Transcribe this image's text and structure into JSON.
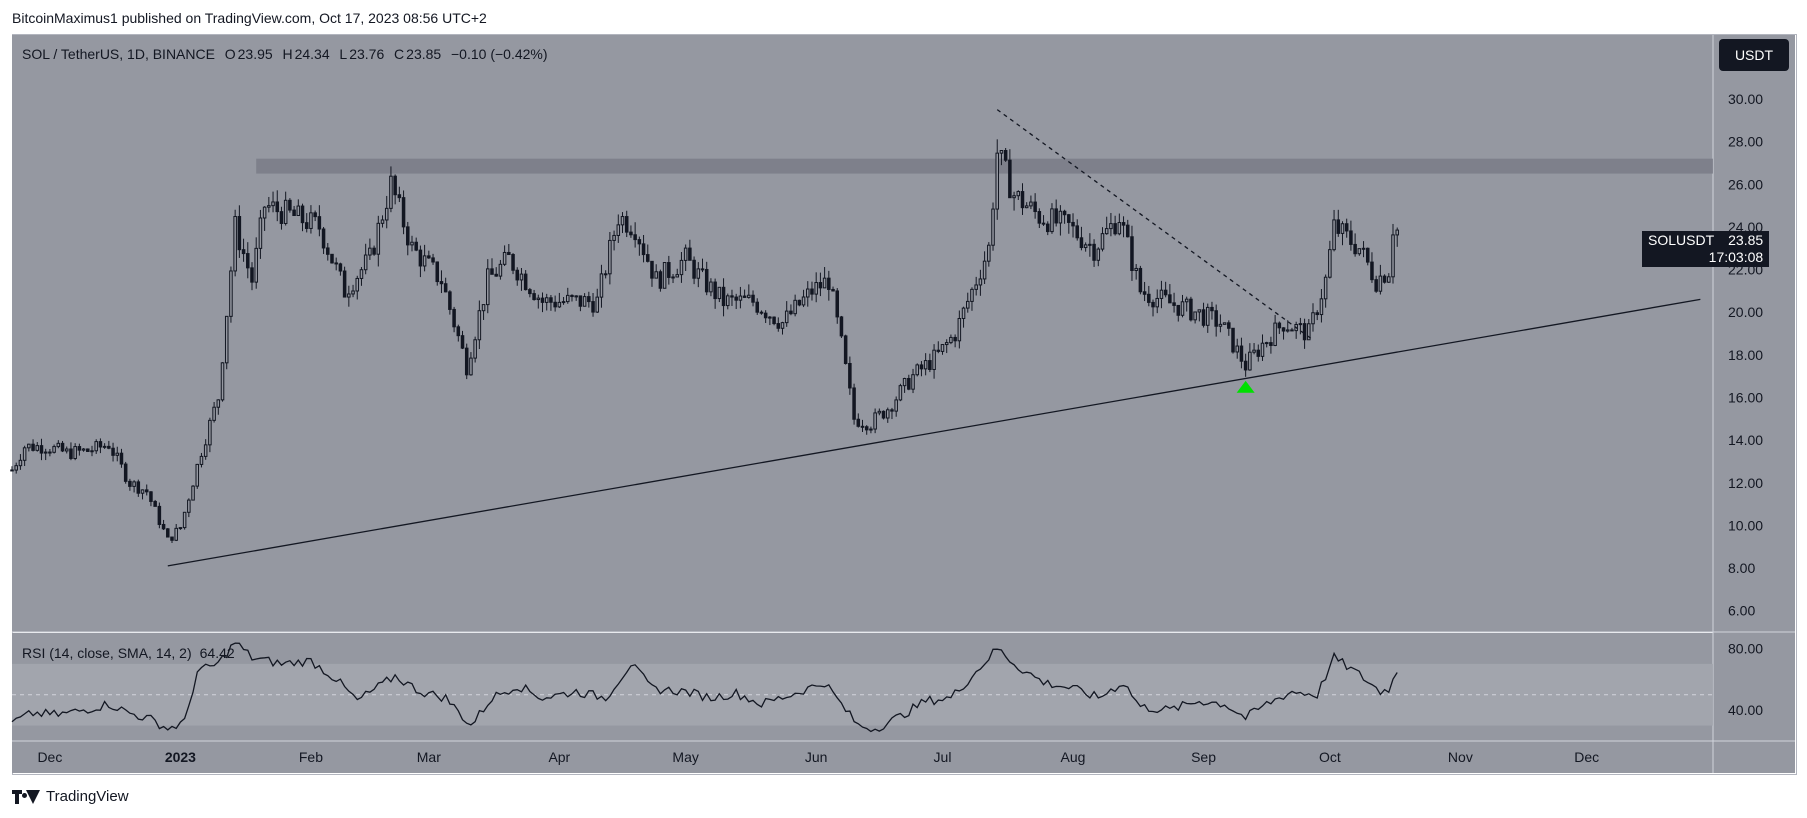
{
  "header": {
    "published": "BitcoinMaximus1 published on TradingView.com, Oct 17, 2023 08:56 UTC+2"
  },
  "symbol": {
    "title": "SOL / TetherUS, 1D, BINANCE",
    "o_label": "O",
    "o_value": "23.95",
    "h_label": "H",
    "h_value": "24.34",
    "l_label": "L",
    "l_value": "23.76",
    "c_label": "C",
    "c_value": "23.85",
    "change": "−0.10 (−0.42%)"
  },
  "rsi_legend": {
    "title": "RSI (14, close, SMA, 14, 2)",
    "value": "64.42"
  },
  "currency_button": "USDT",
  "price_tag": {
    "pair": "SOLUSDT",
    "price": "23.85",
    "countdown": "17:03:08"
  },
  "brand": "TradingView",
  "colors": {
    "chart_bg": "#9598a1",
    "panel_border": "#b2b5be",
    "candle": "#131722",
    "resistance_band": "#787b86",
    "signal_arrow": "#00e000",
    "rsi_band": "#a3a6ae"
  },
  "chart_data": [
    {
      "type": "candlestick",
      "title": "SOL / TetherUS, 1D, BINANCE",
      "ylim": [
        5,
        33
      ],
      "y_ticks": [
        "6.00",
        "8.00",
        "10.00",
        "12.00",
        "14.00",
        "16.00",
        "18.00",
        "20.00",
        "22.00",
        "24.00",
        "26.00",
        "28.00",
        "30.00"
      ],
      "x_tick_labels": [
        "Dec",
        "2023",
        "Feb",
        "Mar",
        "Apr",
        "May",
        "Jun",
        "Jul",
        "Aug",
        "Sep",
        "Oct",
        "Nov",
        "Dec"
      ],
      "x_tick_dates": [
        "2022-12-01",
        "2023-01-01",
        "2023-02-01",
        "2023-03-01",
        "2023-04-01",
        "2023-05-01",
        "2023-06-01",
        "2023-07-01",
        "2023-08-01",
        "2023-09-01",
        "2023-10-01",
        "2023-11-01",
        "2023-12-01"
      ],
      "x_range": [
        "2022-11-22",
        "2023-12-31"
      ],
      "last_price": 23.85,
      "close_path": [
        {
          "date": "2022-11-22",
          "value": 12.6
        },
        {
          "date": "2022-11-25",
          "value": 13.7
        },
        {
          "date": "2022-11-30",
          "value": 13.7
        },
        {
          "date": "2022-12-05",
          "value": 13.4
        },
        {
          "date": "2022-12-10",
          "value": 13.5
        },
        {
          "date": "2022-12-15",
          "value": 13.8
        },
        {
          "date": "2022-12-20",
          "value": 12.0
        },
        {
          "date": "2022-12-24",
          "value": 11.6
        },
        {
          "date": "2022-12-29",
          "value": 9.3
        },
        {
          "date": "2023-01-01",
          "value": 9.9
        },
        {
          "date": "2023-01-06",
          "value": 13.5
        },
        {
          "date": "2023-01-10",
          "value": 16.0
        },
        {
          "date": "2023-01-14",
          "value": 24.0
        },
        {
          "date": "2023-01-18",
          "value": 21.5
        },
        {
          "date": "2023-01-21",
          "value": 25.0
        },
        {
          "date": "2023-01-28",
          "value": 24.5
        },
        {
          "date": "2023-02-03",
          "value": 24.0
        },
        {
          "date": "2023-02-09",
          "value": 21.0
        },
        {
          "date": "2023-02-15",
          "value": 22.5
        },
        {
          "date": "2023-02-20",
          "value": 26.0
        },
        {
          "date": "2023-02-25",
          "value": 23.0
        },
        {
          "date": "2023-03-04",
          "value": 21.5
        },
        {
          "date": "2023-03-10",
          "value": 17.5
        },
        {
          "date": "2023-03-15",
          "value": 21.5
        },
        {
          "date": "2023-03-20",
          "value": 22.5
        },
        {
          "date": "2023-03-28",
          "value": 20.5
        },
        {
          "date": "2023-04-05",
          "value": 20.5
        },
        {
          "date": "2023-04-10",
          "value": 20.5
        },
        {
          "date": "2023-04-15",
          "value": 24.5
        },
        {
          "date": "2023-04-19",
          "value": 24.0
        },
        {
          "date": "2023-04-24",
          "value": 21.5
        },
        {
          "date": "2023-05-01",
          "value": 22.5
        },
        {
          "date": "2023-05-05",
          "value": 21.5
        },
        {
          "date": "2023-05-10",
          "value": 20.5
        },
        {
          "date": "2023-05-17",
          "value": 20.5
        },
        {
          "date": "2023-05-24",
          "value": 19.5
        },
        {
          "date": "2023-05-31",
          "value": 21.0
        },
        {
          "date": "2023-06-04",
          "value": 21.5
        },
        {
          "date": "2023-06-07",
          "value": 18.5
        },
        {
          "date": "2023-06-10",
          "value": 15.0
        },
        {
          "date": "2023-06-14",
          "value": 14.8
        },
        {
          "date": "2023-06-18",
          "value": 15.5
        },
        {
          "date": "2023-06-24",
          "value": 17.0
        },
        {
          "date": "2023-06-30",
          "value": 18.0
        },
        {
          "date": "2023-07-04",
          "value": 19.0
        },
        {
          "date": "2023-07-08",
          "value": 21.0
        },
        {
          "date": "2023-07-12",
          "value": 23.0
        },
        {
          "date": "2023-07-14",
          "value": 27.5
        },
        {
          "date": "2023-07-18",
          "value": 25.5
        },
        {
          "date": "2023-07-24",
          "value": 24.5
        },
        {
          "date": "2023-07-31",
          "value": 24.0
        },
        {
          "date": "2023-08-06",
          "value": 23.0
        },
        {
          "date": "2023-08-12",
          "value": 24.5
        },
        {
          "date": "2023-08-17",
          "value": 21.0
        },
        {
          "date": "2023-08-23",
          "value": 20.5
        },
        {
          "date": "2023-08-30",
          "value": 20.0
        },
        {
          "date": "2023-09-05",
          "value": 19.5
        },
        {
          "date": "2023-09-11",
          "value": 17.5
        },
        {
          "date": "2023-09-15",
          "value": 18.5
        },
        {
          "date": "2023-09-20",
          "value": 19.5
        },
        {
          "date": "2023-09-26",
          "value": 19.0
        },
        {
          "date": "2023-09-30",
          "value": 21.5
        },
        {
          "date": "2023-10-02",
          "value": 24.0
        },
        {
          "date": "2023-10-08",
          "value": 23.0
        },
        {
          "date": "2023-10-12",
          "value": 21.5
        },
        {
          "date": "2023-10-15",
          "value": 22.0
        },
        {
          "date": "2023-10-16",
          "value": 24.0
        },
        {
          "date": "2023-10-17",
          "value": 23.85
        }
      ],
      "annotations": [
        {
          "type": "horizontal_band",
          "y_from": 26.5,
          "y_to": 27.2,
          "x_from": "2023-01-19",
          "x_to": "2023-12-31"
        },
        {
          "type": "trendline",
          "style": "solid",
          "points": [
            {
              "date": "2022-12-29",
              "value": 8.1
            },
            {
              "date": "2023-12-28",
              "value": 20.6
            }
          ]
        },
        {
          "type": "trendline",
          "style": "dashed",
          "points": [
            {
              "date": "2023-07-14",
              "value": 29.5
            },
            {
              "date": "2023-09-27",
              "value": 18.7
            }
          ]
        },
        {
          "type": "arrow_up",
          "date": "2023-09-11",
          "value": 16.5,
          "color": "#00e000"
        }
      ]
    },
    {
      "type": "line",
      "title": "RSI (14, close, SMA, 14, 2)",
      "ylim": [
        20,
        90
      ],
      "y_ticks": [
        "40.00",
        "80.00"
      ],
      "band": [
        30,
        70
      ],
      "midline": 50,
      "last_value": 64.42,
      "series": [
        {
          "values": [
            {
              "date": "2022-11-22",
              "value": 32
            },
            {
              "date": "2022-11-27",
              "value": 38
            },
            {
              "date": "2022-12-03",
              "value": 37
            },
            {
              "date": "2022-12-09",
              "value": 40
            },
            {
              "date": "2022-12-15",
              "value": 44
            },
            {
              "date": "2022-12-20",
              "value": 38
            },
            {
              "date": "2022-12-25",
              "value": 34
            },
            {
              "date": "2022-12-29",
              "value": 28
            },
            {
              "date": "2023-01-02",
              "value": 32
            },
            {
              "date": "2023-01-05",
              "value": 65
            },
            {
              "date": "2023-01-10",
              "value": 70
            },
            {
              "date": "2023-01-14",
              "value": 84
            },
            {
              "date": "2023-01-18",
              "value": 74
            },
            {
              "date": "2023-01-25",
              "value": 70
            },
            {
              "date": "2023-02-01",
              "value": 72
            },
            {
              "date": "2023-02-07",
              "value": 60
            },
            {
              "date": "2023-02-12",
              "value": 46
            },
            {
              "date": "2023-02-17",
              "value": 55
            },
            {
              "date": "2023-02-21",
              "value": 62
            },
            {
              "date": "2023-02-27",
              "value": 52
            },
            {
              "date": "2023-03-05",
              "value": 48
            },
            {
              "date": "2023-03-11",
              "value": 30
            },
            {
              "date": "2023-03-16",
              "value": 48
            },
            {
              "date": "2023-03-22",
              "value": 56
            },
            {
              "date": "2023-03-28",
              "value": 48
            },
            {
              "date": "2023-04-05",
              "value": 52
            },
            {
              "date": "2023-04-12",
              "value": 48
            },
            {
              "date": "2023-04-18",
              "value": 70
            },
            {
              "date": "2023-04-23",
              "value": 54
            },
            {
              "date": "2023-05-01",
              "value": 52
            },
            {
              "date": "2023-05-07",
              "value": 48
            },
            {
              "date": "2023-05-13",
              "value": 51
            },
            {
              "date": "2023-05-19",
              "value": 44
            },
            {
              "date": "2023-05-26",
              "value": 50
            },
            {
              "date": "2023-06-03",
              "value": 58
            },
            {
              "date": "2023-06-08",
              "value": 40
            },
            {
              "date": "2023-06-11",
              "value": 30
            },
            {
              "date": "2023-06-15",
              "value": 28
            },
            {
              "date": "2023-06-21",
              "value": 36
            },
            {
              "date": "2023-06-27",
              "value": 46
            },
            {
              "date": "2023-07-03",
              "value": 48
            },
            {
              "date": "2023-07-08",
              "value": 62
            },
            {
              "date": "2023-07-14",
              "value": 80
            },
            {
              "date": "2023-07-19",
              "value": 68
            },
            {
              "date": "2023-07-25",
              "value": 58
            },
            {
              "date": "2023-08-01",
              "value": 54
            },
            {
              "date": "2023-08-07",
              "value": 48
            },
            {
              "date": "2023-08-13",
              "value": 58
            },
            {
              "date": "2023-08-17",
              "value": 42
            },
            {
              "date": "2023-08-24",
              "value": 40
            },
            {
              "date": "2023-08-31",
              "value": 46
            },
            {
              "date": "2023-09-06",
              "value": 44
            },
            {
              "date": "2023-09-11",
              "value": 35
            },
            {
              "date": "2023-09-16",
              "value": 44
            },
            {
              "date": "2023-09-22",
              "value": 52
            },
            {
              "date": "2023-09-28",
              "value": 50
            },
            {
              "date": "2023-10-02",
              "value": 74
            },
            {
              "date": "2023-10-08",
              "value": 63
            },
            {
              "date": "2023-10-13",
              "value": 52
            },
            {
              "date": "2023-10-15",
              "value": 54
            },
            {
              "date": "2023-10-17",
              "value": 64.42
            }
          ]
        }
      ]
    }
  ]
}
